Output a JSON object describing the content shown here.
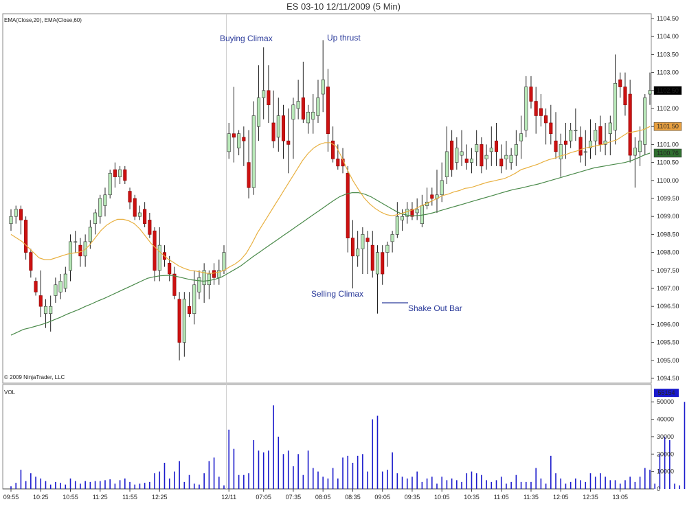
{
  "title": "ES 03-10  12/11/2009 (5 Min)",
  "indicator_label": "EMA(Close,20), EMA(Close,60)",
  "copyright": "© 2009 NinjaTrader, LLC",
  "volume_label": "VOL",
  "colors": {
    "up": "#b8e8b8",
    "down": "#cc1111",
    "ema20": "#e8b040",
    "ema60": "#4a8a4a",
    "volume": "#1a1acc"
  },
  "price_axis": {
    "labels": [
      "1104.50",
      "1104.00",
      "1103.50",
      "1103.00",
      "1102.50",
      "1102.00",
      "1101.50",
      "1101.00",
      "1100.50",
      "1100.00",
      "1099.50",
      "1099.00",
      "1098.50",
      "1098.00",
      "1097.50",
      "1097.00",
      "1096.50",
      "1096.00",
      "1095.50",
      "1095.00",
      "1094.50"
    ],
    "badges": [
      {
        "value": "1102.50",
        "bg": "#000000",
        "fg": "#ffffff"
      },
      {
        "value": "1101.50",
        "bg": "#e8a040",
        "fg": "#000000"
      },
      {
        "value": "1100.76",
        "bg": "#2f6f2f",
        "fg": "#ffffff"
      }
    ]
  },
  "volume_axis": {
    "labels": [
      "50000",
      "40000",
      "30000",
      "20000",
      "10000",
      "0"
    ],
    "badge": "55154"
  },
  "time_axis": [
    "09:55",
    "10:25",
    "10:55",
    "11:25",
    "11:55",
    "12:25",
    "12/11",
    "07:05",
    "07:35",
    "08:05",
    "08:35",
    "09:05",
    "09:35",
    "10:05",
    "10:35",
    "11:05",
    "11:35",
    "12:05",
    "12:35",
    "13:05"
  ],
  "annotations": {
    "buying_climax": "Buying Climax",
    "up_thrust": "Up thrust",
    "selling_climax": "Selling Climax",
    "shake_out_bar": "Shake Out Bar"
  },
  "chart_data": {
    "type": "candlestick",
    "ylim": [
      1094.5,
      1104.5
    ],
    "ohlc": [
      [
        1098.8,
        1099.2,
        1098.6,
        1099.0
      ],
      [
        1099.0,
        1099.3,
        1098.8,
        1099.2
      ],
      [
        1099.2,
        1099.3,
        1098.5,
        1098.9
      ],
      [
        1098.9,
        1099.0,
        1097.8,
        1098.0
      ],
      [
        1098.0,
        1098.1,
        1097.3,
        1097.5
      ],
      [
        1097.2,
        1097.3,
        1096.8,
        1096.9
      ],
      [
        1096.8,
        1097.5,
        1096.2,
        1096.5
      ],
      [
        1096.3,
        1096.7,
        1095.9,
        1096.5
      ],
      [
        1096.3,
        1096.8,
        1095.8,
        1096.5
      ],
      [
        1096.8,
        1097.3,
        1096.6,
        1097.1
      ],
      [
        1096.9,
        1097.4,
        1096.7,
        1097.2
      ],
      [
        1097.0,
        1097.6,
        1096.9,
        1097.4
      ],
      [
        1097.5,
        1098.5,
        1097.2,
        1098.3
      ],
      [
        1098.3,
        1098.6,
        1098.0,
        1098.3
      ],
      [
        1098.2,
        1098.4,
        1097.6,
        1097.9
      ],
      [
        1097.9,
        1098.5,
        1097.6,
        1098.3
      ],
      [
        1098.3,
        1098.9,
        1098.1,
        1098.7
      ],
      [
        1098.8,
        1099.2,
        1098.5,
        1099.1
      ],
      [
        1099.0,
        1099.6,
        1098.8,
        1099.5
      ],
      [
        1099.3,
        1099.8,
        1099.0,
        1099.6
      ],
      [
        1099.6,
        1100.3,
        1099.5,
        1100.2
      ],
      [
        1100.3,
        1100.5,
        1099.8,
        1100.1
      ],
      [
        1100.1,
        1100.4,
        1099.9,
        1100.3
      ],
      [
        1100.3,
        1100.4,
        1099.9,
        1100.0
      ],
      [
        1099.7,
        1099.8,
        1099.2,
        1099.4
      ],
      [
        1099.5,
        1099.6,
        1098.9,
        1099.0
      ],
      [
        1099.0,
        1099.3,
        1098.9,
        1099.1
      ],
      [
        1099.2,
        1099.4,
        1098.7,
        1098.8
      ],
      [
        1098.9,
        1099.1,
        1098.4,
        1098.5
      ],
      [
        1098.6,
        1098.7,
        1097.2,
        1097.5
      ],
      [
        1097.5,
        1098.7,
        1097.2,
        1098.2
      ],
      [
        1098.0,
        1098.2,
        1097.6,
        1097.8
      ],
      [
        1097.7,
        1097.9,
        1097.2,
        1097.4
      ],
      [
        1097.4,
        1097.6,
        1096.7,
        1096.8
      ],
      [
        1096.7,
        1096.9,
        1095.0,
        1095.5
      ],
      [
        1095.5,
        1096.9,
        1095.1,
        1096.7
      ],
      [
        1096.5,
        1096.9,
        1096.2,
        1096.3
      ],
      [
        1096.3,
        1097.5,
        1096.0,
        1097.1
      ],
      [
        1096.9,
        1097.5,
        1096.7,
        1097.3
      ],
      [
        1097.1,
        1097.7,
        1096.6,
        1097.5
      ],
      [
        1097.1,
        1097.5,
        1096.7,
        1097.4
      ],
      [
        1097.5,
        1097.7,
        1097.1,
        1097.3
      ],
      [
        1097.3,
        1097.8,
        1097.1,
        1097.5
      ],
      [
        1097.5,
        1098.2,
        1097.4,
        1098.0
      ],
      [
        1100.8,
        1101.6,
        1100.6,
        1101.3
      ],
      [
        1101.3,
        1102.6,
        1100.5,
        1101.2
      ],
      [
        1100.9,
        1101.4,
        1100.7,
        1101.3
      ],
      [
        1101.2,
        1101.5,
        1100.4,
        1101.1
      ],
      [
        1100.5,
        1101.4,
        1099.5,
        1099.8
      ],
      [
        1099.8,
        1102.2,
        1099.6,
        1101.8
      ],
      [
        1101.5,
        1103.2,
        1101.1,
        1102.3
      ],
      [
        1102.3,
        1103.7,
        1101.7,
        1102.5
      ],
      [
        1102.5,
        1103.2,
        1101.6,
        1102.1
      ],
      [
        1101.6,
        1102.5,
        1100.9,
        1101.1
      ],
      [
        1101.2,
        1102.3,
        1100.8,
        1101.8
      ],
      [
        1101.8,
        1102.1,
        1100.6,
        1101.1
      ],
      [
        1101.1,
        1102.0,
        1100.2,
        1101.0
      ],
      [
        1101.7,
        1102.3,
        1100.6,
        1102.1
      ],
      [
        1102.0,
        1102.8,
        1101.7,
        1102.2
      ],
      [
        1102.3,
        1103.3,
        1101.6,
        1101.7
      ],
      [
        1101.6,
        1102.1,
        1101.3,
        1101.9
      ],
      [
        1101.7,
        1102.4,
        1101.3,
        1101.9
      ],
      [
        1101.8,
        1102.8,
        1101.6,
        1102.3
      ],
      [
        1102.4,
        1103.9,
        1101.9,
        1102.8
      ],
      [
        1102.6,
        1103.1,
        1100.8,
        1101.3
      ],
      [
        1101.1,
        1101.5,
        1100.5,
        1100.6
      ],
      [
        1100.6,
        1101.0,
        1100.3,
        1100.4
      ],
      [
        1100.6,
        1100.9,
        1100.2,
        1100.4
      ],
      [
        1100.2,
        1100.4,
        1098.0,
        1098.4
      ],
      [
        1098.4,
        1098.9,
        1097.0,
        1097.9
      ],
      [
        1097.9,
        1098.6,
        1097.6,
        1098.1
      ],
      [
        1098.1,
        1098.7,
        1097.4,
        1098.5
      ],
      [
        1098.4,
        1098.6,
        1097.4,
        1098.3
      ],
      [
        1098.2,
        1098.6,
        1097.3,
        1097.5
      ],
      [
        1097.4,
        1098.2,
        1096.3,
        1098.0
      ],
      [
        1098.0,
        1098.2,
        1097.1,
        1097.4
      ],
      [
        1098.0,
        1098.3,
        1097.6,
        1098.2
      ],
      [
        1098.3,
        1098.6,
        1098.0,
        1098.5
      ],
      [
        1098.5,
        1099.4,
        1098.4,
        1099.0
      ],
      [
        1098.9,
        1099.2,
        1098.6,
        1099.0
      ],
      [
        1099.0,
        1099.4,
        1098.8,
        1099.2
      ],
      [
        1099.2,
        1099.4,
        1098.9,
        1099.0
      ],
      [
        1099.1,
        1099.5,
        1098.9,
        1099.2
      ],
      [
        1098.8,
        1099.6,
        1098.7,
        1099.3
      ],
      [
        1099.3,
        1099.8,
        1099.2,
        1099.4
      ],
      [
        1099.6,
        1099.8,
        1099.3,
        1099.5
      ],
      [
        1099.5,
        1100.3,
        1099.1,
        1099.6
      ],
      [
        1099.6,
        1100.5,
        1099.4,
        1100.0
      ],
      [
        1100.1,
        1101.5,
        1099.9,
        1100.8
      ],
      [
        1101.1,
        1101.4,
        1100.1,
        1100.3
      ],
      [
        1100.5,
        1101.2,
        1100.3,
        1100.9
      ],
      [
        1100.7,
        1101.4,
        1100.4,
        1100.8
      ],
      [
        1100.6,
        1101.0,
        1100.3,
        1100.5
      ],
      [
        1100.5,
        1100.9,
        1100.2,
        1100.6
      ],
      [
        1100.8,
        1101.4,
        1100.4,
        1101.0
      ],
      [
        1101.0,
        1101.2,
        1100.2,
        1100.4
      ],
      [
        1100.6,
        1101.0,
        1100.3,
        1100.7
      ],
      [
        1100.8,
        1101.5,
        1100.4,
        1100.9
      ],
      [
        1101.1,
        1101.6,
        1100.4,
        1100.8
      ],
      [
        1100.6,
        1101.0,
        1100.2,
        1100.4
      ],
      [
        1100.6,
        1101.1,
        1100.3,
        1100.7
      ],
      [
        1100.5,
        1100.9,
        1100.3,
        1100.7
      ],
      [
        1100.7,
        1101.4,
        1100.4,
        1101.0
      ],
      [
        1101.1,
        1101.8,
        1100.6,
        1101.3
      ],
      [
        1101.4,
        1102.9,
        1101.2,
        1102.6
      ],
      [
        1102.6,
        1102.9,
        1102.0,
        1102.2
      ],
      [
        1102.2,
        1102.6,
        1101.3,
        1101.8
      ],
      [
        1102.0,
        1102.4,
        1101.5,
        1101.8
      ],
      [
        1101.8,
        1102.0,
        1101.0,
        1101.6
      ],
      [
        1101.6,
        1102.1,
        1101.0,
        1101.3
      ],
      [
        1101.1,
        1101.9,
        1100.6,
        1100.8
      ],
      [
        1100.6,
        1101.3,
        1100.1,
        1101.0
      ],
      [
        1101.1,
        1101.6,
        1100.6,
        1101.0
      ],
      [
        1101.1,
        1101.6,
        1100.9,
        1101.4
      ],
      [
        1101.4,
        1102.0,
        1101.1,
        1101.4
      ],
      [
        1101.2,
        1101.5,
        1100.5,
        1100.7
      ],
      [
        1100.8,
        1101.4,
        1100.4,
        1100.8
      ],
      [
        1100.9,
        1101.7,
        1100.6,
        1101.1
      ],
      [
        1101.1,
        1101.6,
        1100.7,
        1101.4
      ],
      [
        1101.5,
        1101.8,
        1100.8,
        1101.0
      ],
      [
        1101.0,
        1101.6,
        1100.7,
        1101.1
      ],
      [
        1101.3,
        1101.8,
        1100.7,
        1101.6
      ],
      [
        1101.4,
        1103.5,
        1101.0,
        1102.7
      ],
      [
        1102.8,
        1103.0,
        1102.3,
        1102.6
      ],
      [
        1102.6,
        1103.0,
        1101.8,
        1102.1
      ],
      [
        1102.4,
        1102.8,
        1100.5,
        1100.7
      ],
      [
        1100.7,
        1101.2,
        1099.8,
        1100.9
      ],
      [
        1100.8,
        1101.5,
        1100.4,
        1101.1
      ],
      [
        1101.0,
        1102.4,
        1100.7,
        1102.3
      ],
      [
        1102.4,
        1103.0,
        1102.1,
        1102.5
      ]
    ],
    "volume": [
      1500,
      3500,
      11000,
      4500,
      9000,
      7000,
      6000,
      4500,
      2500,
      4000,
      3500,
      2500,
      6000,
      4500,
      3000,
      4500,
      4000,
      4500,
      4500,
      5000,
      5500,
      3000,
      5000,
      6000,
      4000,
      2500,
      3000,
      3500,
      4000,
      9000,
      10000,
      15000,
      6000,
      10000,
      16000,
      4000,
      8000,
      3000,
      2500,
      9000,
      16000,
      18000,
      7000,
      2000,
      34000,
      23000,
      8000,
      8000,
      9000,
      28000,
      22000,
      21000,
      22000,
      48000,
      30000,
      20000,
      22000,
      13000,
      20000,
      8000,
      22000,
      12000,
      10000,
      7000,
      6000,
      12000,
      6000,
      18000,
      19000,
      15000,
      19000,
      20000,
      10000,
      40000,
      42000,
      10000,
      11000,
      21000,
      9000,
      7000,
      6000,
      7000,
      10000,
      4000,
      6000,
      7000,
      3000,
      7000,
      5000,
      6000,
      5000,
      4000,
      9000,
      10000,
      9000,
      8000,
      5000,
      4000,
      5000,
      7000,
      3000,
      4000,
      8000,
      4000,
      4000,
      4000,
      12000,
      6000,
      3000,
      19000,
      9000,
      6000,
      3000,
      4000,
      6000,
      5000,
      4000,
      9000,
      7000,
      9000,
      7000,
      5000,
      5000,
      3000,
      5000,
      7000,
      4000,
      7000,
      12000,
      11000,
      3000,
      20000,
      30000,
      28000,
      3000,
      2000,
      50000,
      55154
    ],
    "ema20": [
      1098.5,
      1098.4,
      1098.3,
      1098.15,
      1098.0,
      1097.85,
      1097.8,
      1097.8,
      1097.85,
      1097.9,
      1097.95,
      1097.98,
      1098.0,
      1098.05,
      1098.2,
      1098.4,
      1098.6,
      1098.75,
      1098.85,
      1098.92,
      1098.92,
      1098.88,
      1098.8,
      1098.65,
      1098.45,
      1098.25,
      1098.1,
      1097.95,
      1097.82,
      1097.72,
      1097.62,
      1097.55,
      1097.5,
      1097.48,
      1097.45,
      1097.42,
      1097.42,
      1097.45,
      1097.5,
      1097.6,
      1097.68,
      1097.8,
      1097.98,
      1098.25,
      1098.55,
      1098.8,
      1099.05,
      1099.3,
      1099.55,
      1099.8,
      1100.05,
      1100.3,
      1100.55,
      1100.75,
      1100.9,
      1101.0,
      1101.05,
      1101.05,
      1100.95,
      1100.65,
      1100.3,
      1100.0,
      1099.75,
      1099.52,
      1099.35,
      1099.22,
      1099.12,
      1099.05,
      1099.02,
      1099.05,
      1099.1,
      1099.15,
      1099.2,
      1099.28,
      1099.35,
      1099.42,
      1099.5,
      1099.58,
      1099.62,
      1099.68,
      1099.72,
      1099.78,
      1099.8,
      1099.85,
      1099.9,
      1099.95,
      1099.98,
      1100.02,
      1100.05,
      1100.12,
      1100.2,
      1100.3,
      1100.35,
      1100.4,
      1100.45,
      1100.52,
      1100.58,
      1100.62,
      1100.68,
      1100.72,
      1100.78,
      1100.82,
      1100.88,
      1100.92,
      1100.95,
      1100.98,
      1101.02,
      1101.08,
      1101.12,
      1101.22,
      1101.32,
      1101.35,
      1101.38,
      1101.42,
      1101.5
    ],
    "ema60": [
      1095.7,
      1095.78,
      1095.86,
      1095.9,
      1095.95,
      1096.0,
      1096.06,
      1096.13,
      1096.2,
      1096.28,
      1096.35,
      1096.42,
      1096.5,
      1096.57,
      1096.65,
      1096.72,
      1096.8,
      1096.88,
      1096.96,
      1097.04,
      1097.12,
      1097.2,
      1097.28,
      1097.32,
      1097.35,
      1097.36,
      1097.36,
      1097.32,
      1097.28,
      1097.24,
      1097.22,
      1097.2,
      1097.22,
      1097.26,
      1097.32,
      1097.42,
      1097.52,
      1097.62,
      1097.75,
      1097.88,
      1098.0,
      1098.12,
      1098.24,
      1098.36,
      1098.48,
      1098.6,
      1098.72,
      1098.84,
      1098.96,
      1099.08,
      1099.2,
      1099.32,
      1099.44,
      1099.55,
      1099.62,
      1099.66,
      1099.66,
      1099.62,
      1099.55,
      1099.45,
      1099.35,
      1099.25,
      1099.15,
      1099.07,
      1099.03,
      1099.02,
      1099.03,
      1099.06,
      1099.1,
      1099.15,
      1099.2,
      1099.25,
      1099.3,
      1099.35,
      1099.4,
      1099.45,
      1099.5,
      1099.55,
      1099.6,
      1099.65,
      1099.7,
      1099.75,
      1099.78,
      1099.82,
      1099.86,
      1099.9,
      1099.95,
      1100.0,
      1100.05,
      1100.1,
      1100.15,
      1100.2,
      1100.25,
      1100.3,
      1100.35,
      1100.38,
      1100.41,
      1100.44,
      1100.47,
      1100.5,
      1100.55,
      1100.62,
      1100.7,
      1100.76
    ]
  }
}
